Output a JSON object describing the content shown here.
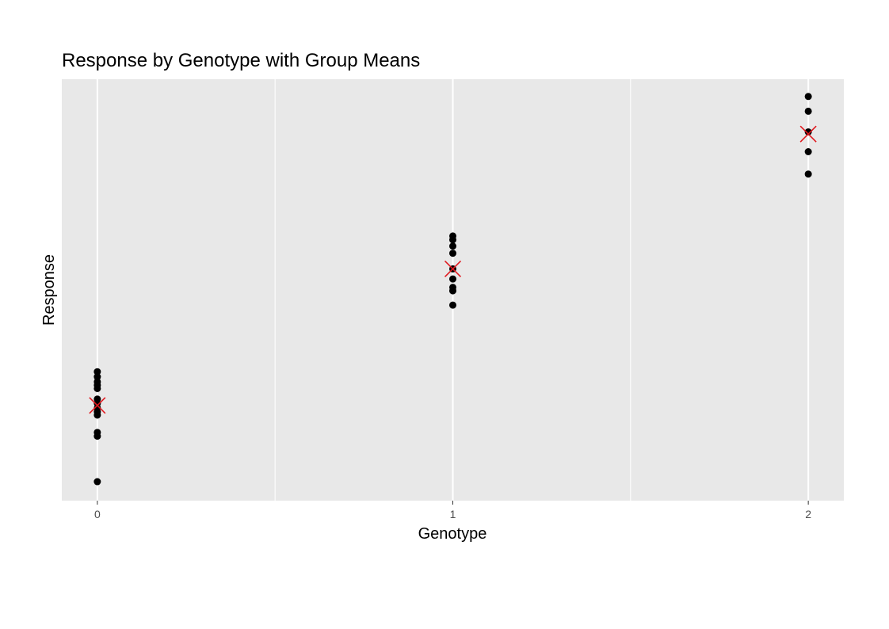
{
  "chart_data": {
    "type": "scatter",
    "title": "Response by Genotype with Group Means",
    "xlabel": "Genotype",
    "ylabel": "Response",
    "x_ticks": [
      "0",
      "1",
      "2"
    ],
    "xlim": [
      -0.1,
      2.1
    ],
    "ylim": [
      0,
      100
    ],
    "grid": true,
    "y_ticks_shown": false,
    "series": [
      {
        "values": [
          {
            "x": 0,
            "y": 30.6
          },
          {
            "x": 0,
            "y": 29.4
          },
          {
            "x": 0,
            "y": 28.2
          },
          {
            "x": 0,
            "y": 27.4
          },
          {
            "x": 0,
            "y": 26.6
          },
          {
            "x": 0,
            "y": 24.1
          },
          {
            "x": 0,
            "y": 23.1
          },
          {
            "x": 0,
            "y": 22.0
          },
          {
            "x": 0,
            "y": 21.1
          },
          {
            "x": 0,
            "y": 20.3
          },
          {
            "x": 0,
            "y": 16.2
          },
          {
            "x": 0,
            "y": 15.3
          },
          {
            "x": 0,
            "y": 4.5
          },
          {
            "x": 1,
            "y": 62.8
          },
          {
            "x": 1,
            "y": 61.9
          },
          {
            "x": 1,
            "y": 60.4
          },
          {
            "x": 1,
            "y": 58.7
          },
          {
            "x": 1,
            "y": 55.0
          },
          {
            "x": 1,
            "y": 52.6
          },
          {
            "x": 1,
            "y": 50.6
          },
          {
            "x": 1,
            "y": 49.8
          },
          {
            "x": 1,
            "y": 46.4
          },
          {
            "x": 2,
            "y": 95.9
          },
          {
            "x": 2,
            "y": 92.4
          },
          {
            "x": 2,
            "y": 87.5
          },
          {
            "x": 2,
            "y": 82.8
          },
          {
            "x": 2,
            "y": 77.5
          }
        ],
        "color": "#000000"
      },
      {
        "marker": "x",
        "values": [
          {
            "x": 0,
            "y": 22.6
          },
          {
            "x": 1,
            "y": 55.0
          },
          {
            "x": 2,
            "y": 87.0
          }
        ],
        "color": "#e0191f"
      }
    ],
    "panel_color": "#e8e8e8",
    "grid_color": "#ffffff"
  }
}
